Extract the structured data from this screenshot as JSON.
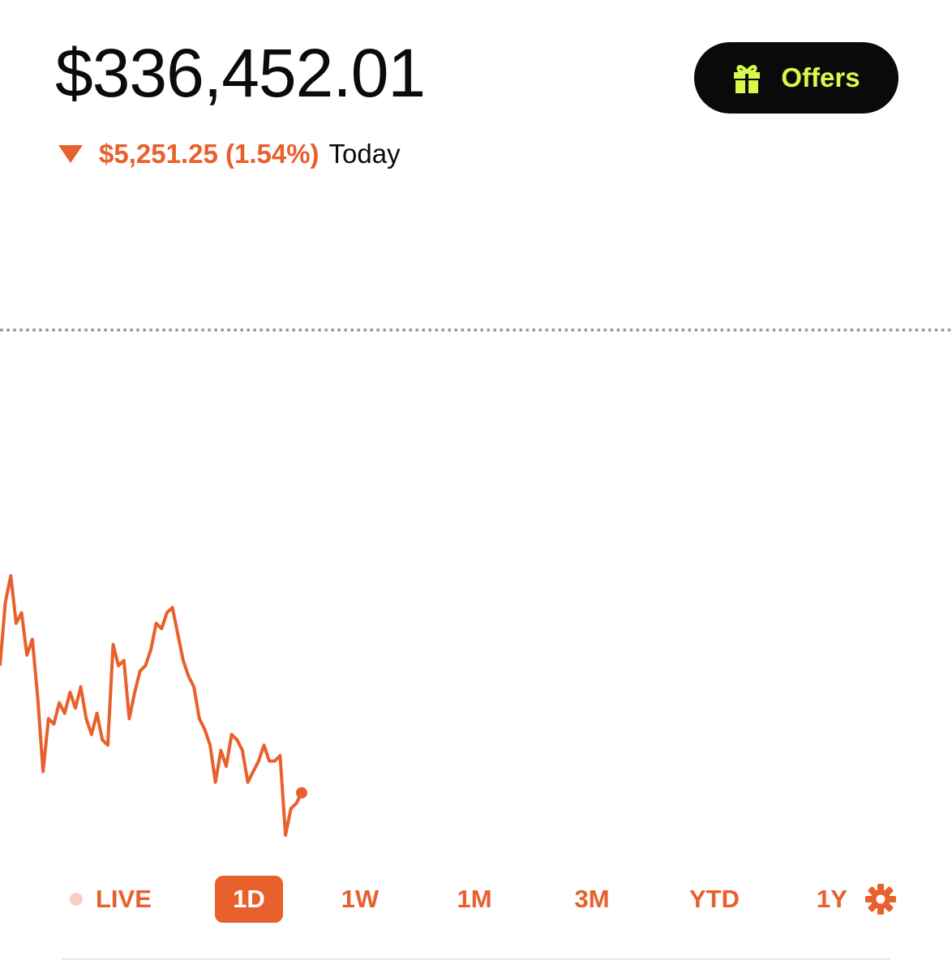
{
  "portfolio": {
    "balance": "$336,452.01",
    "change_amount": "$5,251.25 (1.54%)",
    "change_period": "Today",
    "change_direction": "down",
    "accent_color": "#e8602c"
  },
  "offers_button": {
    "label": "Offers",
    "icon": "gift-icon"
  },
  "range_selector": {
    "items": [
      {
        "label": "LIVE"
      },
      {
        "label": "1D",
        "selected": true
      },
      {
        "label": "1W"
      },
      {
        "label": "1M"
      },
      {
        "label": "3M"
      },
      {
        "label": "YTD"
      },
      {
        "label": "1Y"
      }
    ],
    "settings_icon": "gear-icon"
  },
  "chart_data": {
    "type": "line",
    "series": [
      {
        "values": [
          900,
          960,
          985,
          940,
          950,
          910,
          925,
          870,
          800,
          850,
          845,
          865,
          855,
          875,
          860,
          880,
          850,
          835,
          855,
          830,
          825,
          920,
          900,
          905,
          850,
          875,
          895,
          900,
          915,
          940,
          935,
          950,
          955,
          930,
          905,
          890,
          880,
          850,
          840,
          825,
          790,
          820,
          805,
          835,
          830,
          820,
          790,
          800,
          810,
          825,
          810,
          810,
          815,
          740,
          765,
          770,
          780
        ]
      }
    ]
  }
}
